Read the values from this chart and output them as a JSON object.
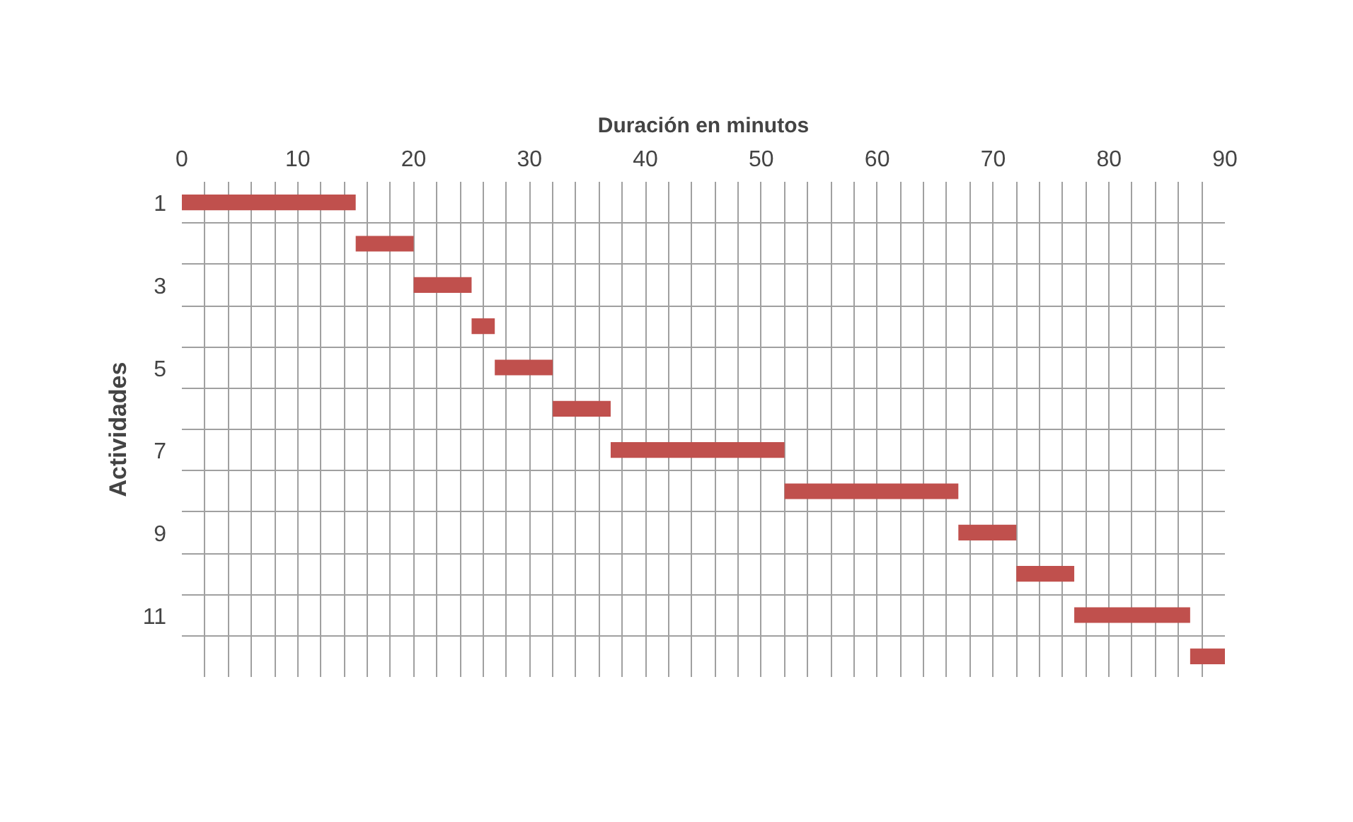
{
  "chart_data": {
    "type": "bar",
    "orientation": "horizontal",
    "xlabel": "Duración en minutos",
    "ylabel": "Actividades",
    "categories": [
      "1",
      null,
      "3",
      null,
      "5",
      null,
      "7",
      null,
      "9",
      null,
      "11",
      null
    ],
    "base": [
      0,
      15,
      20,
      25,
      27,
      32,
      37,
      52,
      67,
      72,
      77,
      87
    ],
    "values": [
      15,
      5,
      5,
      2,
      5,
      5,
      15,
      15,
      5,
      5,
      10,
      3
    ],
    "color": "#c0504d",
    "xlim": [
      0,
      90
    ],
    "xticks": [
      0,
      {
        "value": 2,
        "label": null
      },
      {
        "value": 4,
        "label": null
      },
      {
        "value": 6,
        "label": null
      },
      {
        "value": 8,
        "label": null
      },
      10,
      {
        "value": 12,
        "label": null
      },
      {
        "value": 14,
        "label": null
      },
      {
        "value": 16,
        "label": null
      },
      {
        "value": 18,
        "label": null
      },
      20,
      {
        "value": 22,
        "label": null
      },
      {
        "value": 24,
        "label": null
      },
      {
        "value": 26,
        "label": null
      },
      {
        "value": 28,
        "label": null
      },
      30,
      {
        "value": 32,
        "label": null
      },
      {
        "value": 34,
        "label": null
      },
      {
        "value": 36,
        "label": null
      },
      {
        "value": 38,
        "label": null
      },
      40,
      {
        "value": 42,
        "label": null
      },
      {
        "value": 44,
        "label": null
      },
      {
        "value": 46,
        "label": null
      },
      {
        "value": 48,
        "label": null
      },
      50,
      {
        "value": 52,
        "label": null
      },
      {
        "value": 54,
        "label": null
      },
      {
        "value": 56,
        "label": null
      },
      {
        "value": 58,
        "label": null
      },
      60,
      {
        "value": 62,
        "label": null
      },
      {
        "value": 64,
        "label": null
      },
      {
        "value": 66,
        "label": null
      },
      {
        "value": 68,
        "label": null
      },
      70,
      {
        "value": 72,
        "label": null
      },
      {
        "value": 74,
        "label": null
      },
      {
        "value": 76,
        "label": null
      },
      {
        "value": 78,
        "label": null
      },
      80,
      {
        "value": 82,
        "label": null
      },
      {
        "value": 84,
        "label": null
      },
      {
        "value": 86,
        "label": null
      },
      {
        "value": 88,
        "label": null
      },
      90
    ],
    "grid": true
  }
}
